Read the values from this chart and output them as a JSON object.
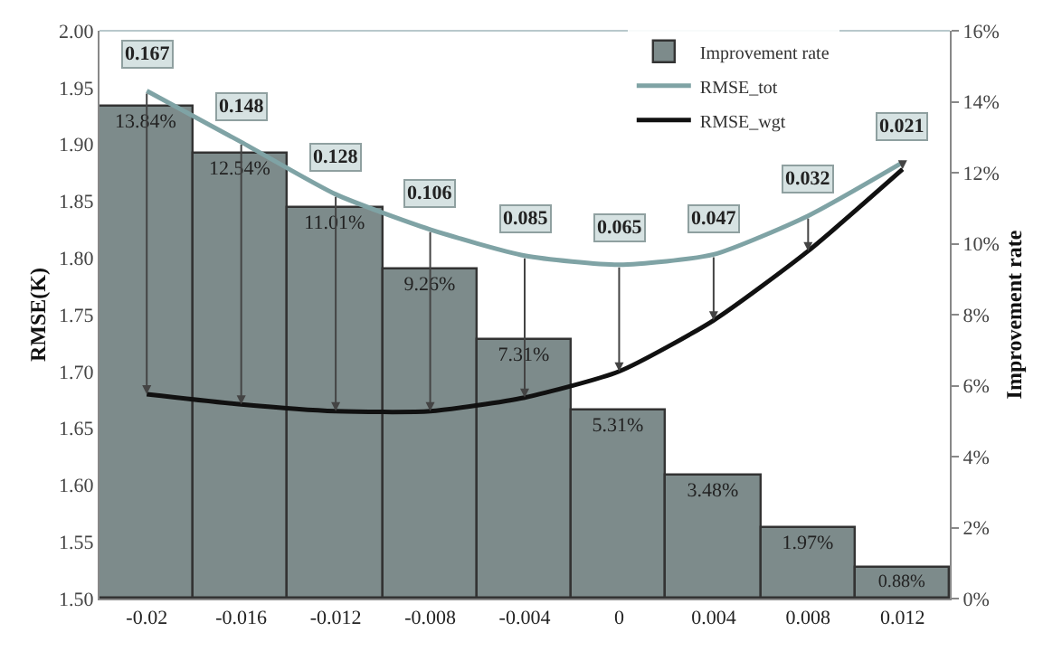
{
  "chart_data": {
    "type": "bar",
    "ylabel": "RMSE(K)",
    "y2label": "Improvement rate",
    "categories": [
      "-0.02",
      "-0.016",
      "-0.012",
      "-0.008",
      "-0.004",
      "0",
      "0.004",
      "0.008",
      "0.012"
    ],
    "series": [
      {
        "name": "Improvement rate",
        "axis": "y2",
        "color": "#7d8b8b",
        "values": [
          13.84,
          12.54,
          11.01,
          9.26,
          7.31,
          5.31,
          3.48,
          1.97,
          0.88
        ],
        "value_labels": [
          "13.84%",
          "12.54%",
          "11.01%",
          "9.26%",
          "7.31%",
          "5.31%",
          "3.48%",
          "1.97%",
          "0.88%"
        ]
      },
      {
        "name": "RMSE_tot",
        "type": "line",
        "color": "#7fa3a5",
        "values": [
          1.947,
          1.902,
          1.856,
          1.825,
          1.802,
          1.794,
          1.803,
          1.837,
          1.884
        ]
      },
      {
        "name": "RMSE_wgt",
        "type": "line",
        "color": "#111111",
        "values": [
          1.68,
          1.671,
          1.665,
          1.665,
          1.677,
          1.7,
          1.745,
          1.806,
          1.878
        ]
      }
    ],
    "annotations": [
      {
        "text": "0.167",
        "x": "-0.02",
        "y": 1.947
      },
      {
        "text": "0.148",
        "x": "-0.016",
        "y": 1.902
      },
      {
        "text": "0.128",
        "x": "-0.012",
        "y": 1.856
      },
      {
        "text": "0.106",
        "x": "-0.008",
        "y": 1.825
      },
      {
        "text": "0.085",
        "x": "-0.004",
        "y": 1.802
      },
      {
        "text": "0.065",
        "x": "0",
        "y": 1.794
      },
      {
        "text": "0.047",
        "x": "0.004",
        "y": 1.803
      },
      {
        "text": "0.032",
        "x": "0.008",
        "y": 1.837
      },
      {
        "text": "0.021",
        "x": "0.012",
        "y": 1.884
      }
    ],
    "ylim": [
      1.5,
      2.0
    ],
    "yticks": [
      {
        "value": 1.5,
        "label": "1.50"
      },
      {
        "value": 1.55,
        "label": "1.55"
      },
      {
        "value": 1.6,
        "label": "1.60"
      },
      {
        "value": 1.65,
        "label": "1.65"
      },
      {
        "value": 1.7,
        "label": "1.70"
      },
      {
        "value": 1.75,
        "label": "1.75"
      },
      {
        "value": 1.8,
        "label": "1.80"
      },
      {
        "value": 1.85,
        "label": "1.85"
      },
      {
        "value": 1.9,
        "label": "1.90"
      },
      {
        "value": 1.95,
        "label": "1.95"
      },
      {
        "value": 2.0,
        "label": "2.00"
      }
    ],
    "y2lim": [
      0,
      16
    ],
    "y2ticks": [
      {
        "value": 0,
        "label": "0%"
      },
      {
        "value": 2,
        "label": "2%"
      },
      {
        "value": 4,
        "label": "4%"
      },
      {
        "value": 6,
        "label": "6%"
      },
      {
        "value": 8,
        "label": "8%"
      },
      {
        "value": 10,
        "label": "10%"
      },
      {
        "value": 12,
        "label": "12%"
      },
      {
        "value": 14,
        "label": "14%"
      },
      {
        "value": 16,
        "label": "16%"
      }
    ],
    "legend": "top right",
    "marker": "none",
    "line_style": "solid"
  }
}
